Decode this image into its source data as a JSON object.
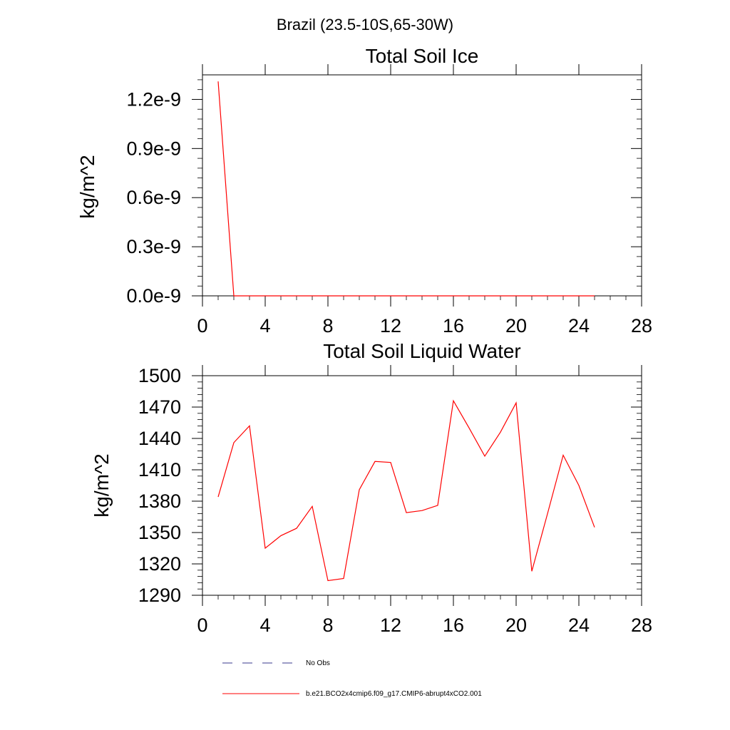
{
  "page_title": "Brazil (23.5-10S,65-30W)",
  "line_color": "#ff0000",
  "obs_color": "#3a3a8c",
  "legend": {
    "obs_label": "No Obs",
    "model_label": "b.e21.BCO2x4cmip6.f09_g17.CMIP6-abrupt4xCO2.001"
  },
  "chart_data": [
    {
      "type": "line",
      "title": "Total Soil Ice",
      "xlabel": "",
      "ylabel": "kg/m^2",
      "xlim": [
        0,
        28
      ],
      "ylim": [
        0,
        1.35e-09
      ],
      "xticks": [
        0,
        4,
        8,
        12,
        16,
        20,
        24,
        28
      ],
      "xtick_labels": [
        "0",
        "4",
        "8",
        "12",
        "16",
        "20",
        "24",
        "28"
      ],
      "yticks": [
        0,
        3e-10,
        6e-10,
        9e-10,
        1.2e-09
      ],
      "ytick_labels": [
        "0.0e-9",
        "0.3e-9",
        "0.6e-9",
        "0.9e-9",
        "1.2e-9"
      ],
      "series": [
        {
          "name": "b.e21.BCO2x4cmip6.f09_g17.CMIP6-abrupt4xCO2.001",
          "x": [
            1,
            2,
            3,
            4,
            5,
            6,
            7,
            8,
            9,
            10,
            11,
            12,
            13,
            14,
            15,
            16,
            17,
            18,
            19,
            20,
            21,
            22,
            23,
            24,
            25
          ],
          "values": [
            1.31e-09,
            0,
            0,
            0,
            0,
            0,
            0,
            0,
            0,
            0,
            0,
            0,
            0,
            0,
            0,
            0,
            0,
            0,
            0,
            0,
            0,
            0,
            0,
            0,
            0
          ]
        }
      ]
    },
    {
      "type": "line",
      "title": "Total Soil Liquid Water",
      "xlabel": "",
      "ylabel": "kg/m^2",
      "xlim": [
        0,
        28
      ],
      "ylim": [
        1290,
        1500
      ],
      "xticks": [
        0,
        4,
        8,
        12,
        16,
        20,
        24,
        28
      ],
      "xtick_labels": [
        "0",
        "4",
        "8",
        "12",
        "16",
        "20",
        "24",
        "28"
      ],
      "yticks": [
        1290,
        1320,
        1350,
        1380,
        1410,
        1440,
        1470,
        1500
      ],
      "ytick_labels": [
        "1290",
        "1320",
        "1350",
        "1380",
        "1410",
        "1440",
        "1470",
        "1500"
      ],
      "series": [
        {
          "name": "b.e21.BCO2x4cmip6.f09_g17.CMIP6-abrupt4xCO2.001",
          "x": [
            1,
            2,
            3,
            4,
            5,
            6,
            7,
            8,
            9,
            10,
            11,
            12,
            13,
            14,
            15,
            16,
            17,
            18,
            19,
            20,
            21,
            22,
            23,
            24,
            25
          ],
          "values": [
            1384,
            1436,
            1452,
            1335,
            1347,
            1354,
            1375,
            1304,
            1306,
            1391,
            1418,
            1417,
            1369,
            1371,
            1376,
            1476,
            1450,
            1423,
            1446,
            1474,
            1313,
            1368,
            1424,
            1395,
            1355
          ]
        }
      ]
    }
  ]
}
